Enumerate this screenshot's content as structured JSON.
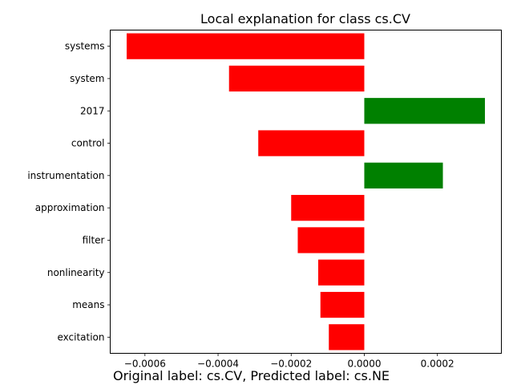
{
  "chart_data": {
    "type": "bar",
    "orientation": "horizontal",
    "title": "Local explanation for class cs.CV",
    "xlabel": "",
    "ylabel": "",
    "categories": [
      "systems",
      "system",
      "2017",
      "control",
      "instrumentation",
      "approximation",
      "filter",
      "nonlinearity",
      "means",
      "excitation"
    ],
    "values": [
      -0.00065,
      -0.00037,
      0.00033,
      -0.00029,
      0.000215,
      -0.0002,
      -0.000182,
      -0.000126,
      -0.00012,
      -9.7e-05
    ],
    "xlim": [
      -0.000695,
      0.000375
    ],
    "xticks": [
      -0.0006,
      -0.0004,
      -0.0002,
      0.0,
      0.0002
    ],
    "xtick_labels": [
      "−0.0006",
      "−0.0004",
      "−0.0002",
      "0.0000",
      "0.0002"
    ],
    "colors": {
      "positive": "#008000",
      "negative": "#ff0000"
    },
    "grid": false
  },
  "caption": "Original label: cs.CV, Predicted label: cs.NE"
}
